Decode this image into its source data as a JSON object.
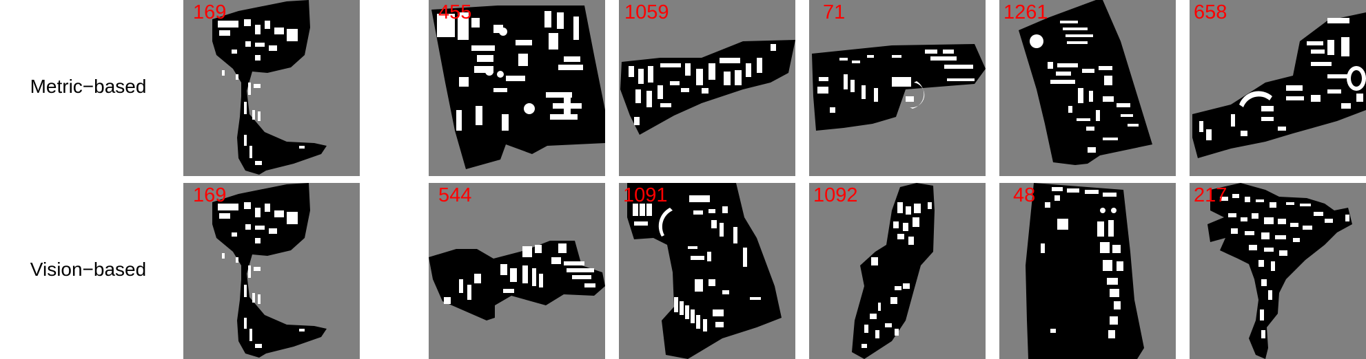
{
  "rows": [
    {
      "label": "Metric−based",
      "tiles": [
        {
          "number": "169"
        },
        {
          "number": "455"
        },
        {
          "number": "1059"
        },
        {
          "number": "71"
        },
        {
          "number": "1261"
        },
        {
          "number": "658"
        }
      ]
    },
    {
      "label": "Vision−based",
      "tiles": [
        {
          "number": "169"
        },
        {
          "number": "544"
        },
        {
          "number": "1091"
        },
        {
          "number": "1092"
        },
        {
          "number": "48"
        },
        {
          "number": "217"
        }
      ]
    }
  ],
  "colors": {
    "tile_background": "#808080",
    "site_fill": "#000000",
    "building_fill": "#ffffff",
    "number_color": "#ff0000"
  }
}
